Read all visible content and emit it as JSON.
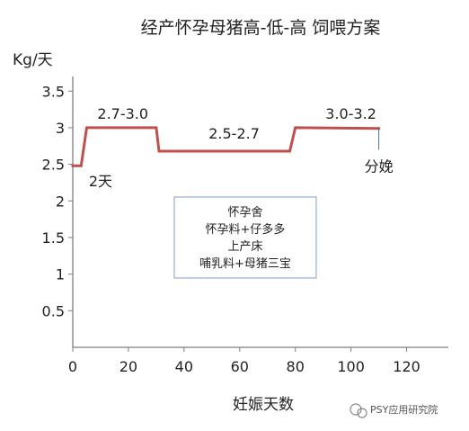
{
  "chart_data": {
    "type": "line",
    "title": "经产怀孕母猪高-低-高 饲喂方案",
    "ylabel": "Kg/天",
    "xlabel": "妊娠天数",
    "xlim": [
      0,
      135
    ],
    "ylim": [
      0,
      3.7
    ],
    "xticks": [
      0,
      20,
      40,
      60,
      80,
      100,
      120
    ],
    "xtick_labels": [
      "0",
      "20",
      "40",
      "60",
      "80",
      "100",
      "120"
    ],
    "yticks": [
      0.5,
      1,
      1.5,
      2,
      2.5,
      3,
      3.5
    ],
    "ytick_labels": [
      "0.5",
      "1",
      "1.5",
      "2",
      "2.5",
      "3",
      "3.5"
    ],
    "grid": false,
    "line_color": "#c0504d",
    "series": [
      {
        "x": [
          0,
          3,
          5,
          30,
          31,
          78,
          80,
          110
        ],
        "y": [
          2.48,
          2.48,
          3.0,
          3.0,
          2.68,
          2.68,
          3.0,
          2.99
        ]
      }
    ],
    "annotations": [
      {
        "text": "2.7-3.0",
        "x": 18,
        "y": 3.12
      },
      {
        "text": "2.5-2.7",
        "x": 58,
        "y": 2.85
      },
      {
        "text": "3.0-3.2",
        "x": 100,
        "y": 3.12
      },
      {
        "text": "2天",
        "x": 10,
        "y": 2.2
      }
    ],
    "marker": {
      "text": "分娩",
      "x": 110,
      "y_from": 2.99,
      "y_to": 2.7
    },
    "box_lines": [
      "怀孕舍",
      "怀孕料+仔多多",
      "上产床",
      "哺乳料+母猪三宝"
    ],
    "box_anchor": {
      "x": 62,
      "y": 1.5
    }
  },
  "watermark": {
    "text": "PSY应用研究院"
  },
  "colors": {
    "line": "#c0504d",
    "axis": "#7f7f7f",
    "box_border": "#7f9fc8",
    "text": "#222222"
  }
}
